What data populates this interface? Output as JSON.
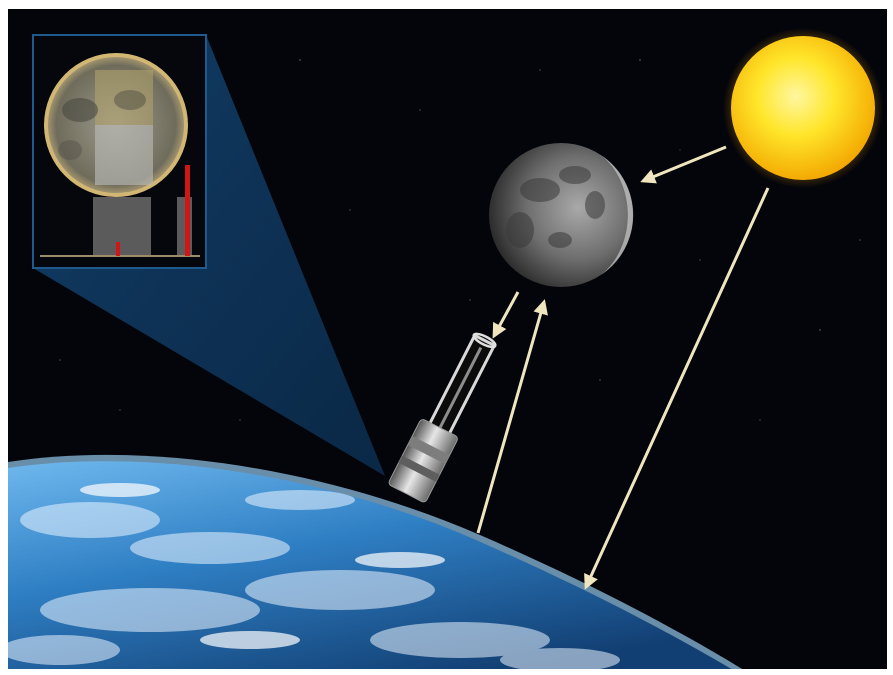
{
  "diagram": {
    "colors": {
      "frame": "#ffffff",
      "space": "#04050a",
      "sun_core": "#fff15a",
      "sun_edge": "#f5a800",
      "moon_light": "#c9c9c9",
      "moon_dark": "#2a2a2a",
      "earth_ocean": "#2f7fc4",
      "earth_cloud": "#eaf4ff",
      "atmosphere": "#8fd0ff",
      "arrow": "#efe6bf",
      "beam": "#0e3d66",
      "inset_border": "#1f5a8e",
      "histogram_bar": "#d01616"
    },
    "components": [
      {
        "id": "sun",
        "icon": "sun-icon"
      },
      {
        "id": "moon",
        "icon": "moon-icon"
      },
      {
        "id": "earth",
        "icon": "earth-icon"
      },
      {
        "id": "satellite",
        "icon": "satellite-telescope-icon"
      },
      {
        "id": "inset",
        "icon": "moon-calibration-inset-icon"
      }
    ],
    "arrows": [
      {
        "id": "sun-to-moon",
        "from": "sun",
        "to": "moon"
      },
      {
        "id": "sun-to-earth",
        "from": "sun",
        "to": "earth"
      },
      {
        "id": "moon-to-satellite",
        "from": "moon",
        "to": "satellite"
      },
      {
        "id": "earth-to-moon",
        "from": "earth",
        "to": "moon"
      }
    ]
  }
}
